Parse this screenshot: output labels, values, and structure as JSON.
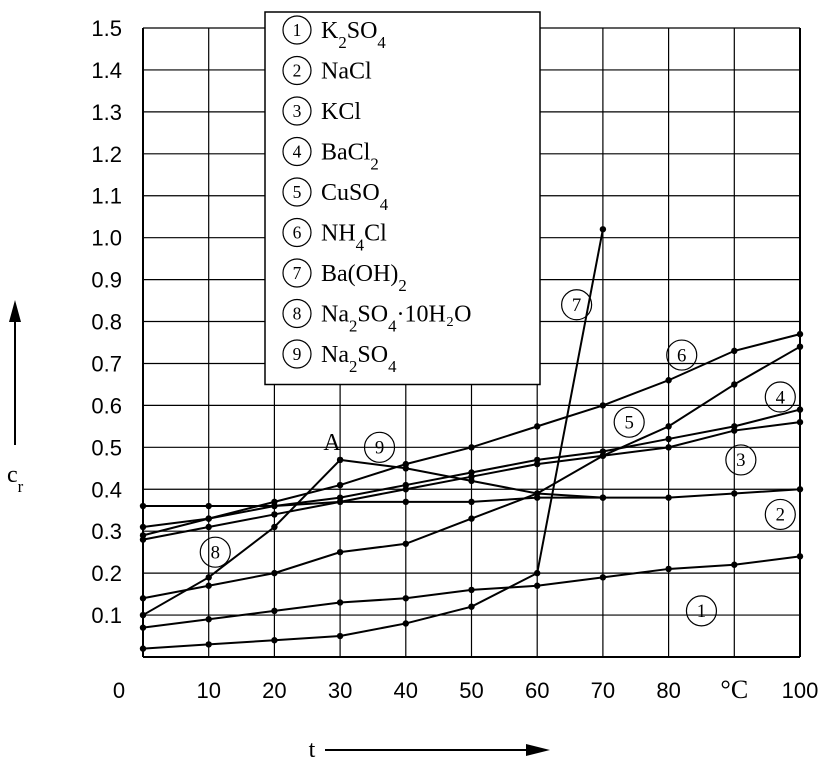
{
  "chart_data": {
    "type": "line",
    "xlabel": "t",
    "ylabel": "c",
    "ylabel_sub": "r",
    "x_unit": "°C",
    "xlim": [
      0,
      100
    ],
    "ylim": [
      0,
      1.5
    ],
    "x_ticks": [
      "0",
      "10",
      "20",
      "30",
      "40",
      "50",
      "60",
      "70",
      "80",
      "°C",
      "100"
    ],
    "y_ticks": [
      "0",
      "0.1",
      "0.2",
      "0.3",
      "0.4",
      "0.5",
      "0.6",
      "0.7",
      "0.8",
      "0.9",
      "1.0",
      "1.1",
      "1.2",
      "1.3",
      "1.4",
      "1.5"
    ],
    "grid": true,
    "legend_position": "top-center",
    "point_annotation": "A",
    "series": [
      {
        "marker": "1",
        "name": "K₂SO₄",
        "x": [
          0,
          10,
          20,
          30,
          40,
          50,
          60,
          70,
          80,
          90,
          100
        ],
        "y": [
          0.07,
          0.09,
          0.11,
          0.13,
          0.14,
          0.16,
          0.17,
          0.19,
          0.21,
          0.22,
          0.24
        ]
      },
      {
        "marker": "2",
        "name": "NaCl",
        "x": [
          0,
          10,
          20,
          30,
          40,
          50,
          60,
          70,
          80,
          90,
          100
        ],
        "y": [
          0.36,
          0.36,
          0.36,
          0.37,
          0.37,
          0.37,
          0.38,
          0.38,
          0.38,
          0.39,
          0.4
        ]
      },
      {
        "marker": "3",
        "name": "KCl",
        "x": [
          0,
          10,
          20,
          30,
          40,
          50,
          60,
          70,
          80,
          90,
          100
        ],
        "y": [
          0.28,
          0.31,
          0.34,
          0.37,
          0.4,
          0.43,
          0.46,
          0.48,
          0.5,
          0.54,
          0.56
        ]
      },
      {
        "marker": "4",
        "name": "BaCl₂",
        "x": [
          0,
          10,
          20,
          30,
          40,
          50,
          60,
          70,
          80,
          90,
          100
        ],
        "y": [
          0.31,
          0.33,
          0.36,
          0.38,
          0.41,
          0.44,
          0.47,
          0.49,
          0.52,
          0.55,
          0.59
        ]
      },
      {
        "marker": "5",
        "name": "CuSO₄",
        "x": [
          0,
          10,
          20,
          30,
          40,
          50,
          60,
          70,
          80,
          90,
          100
        ],
        "y": [
          0.14,
          0.17,
          0.2,
          0.25,
          0.27,
          0.33,
          0.39,
          0.48,
          0.55,
          0.65,
          0.74
        ]
      },
      {
        "marker": "6",
        "name": "NH₄Cl",
        "x": [
          0,
          10,
          20,
          30,
          40,
          50,
          60,
          70,
          80,
          90,
          100
        ],
        "y": [
          0.29,
          0.33,
          0.37,
          0.41,
          0.46,
          0.5,
          0.55,
          0.6,
          0.66,
          0.73,
          0.77
        ]
      },
      {
        "marker": "7",
        "name": "Ba(OH)₂",
        "x": [
          0,
          10,
          20,
          30,
          40,
          50,
          60,
          70
        ],
        "y": [
          0.02,
          0.03,
          0.04,
          0.05,
          0.08,
          0.12,
          0.2,
          1.02
        ]
      },
      {
        "marker": "8",
        "name": "Na₂SO₄·10H₂O",
        "x": [
          0,
          10,
          20,
          30
        ],
        "y": [
          0.1,
          0.19,
          0.31,
          0.47
        ]
      },
      {
        "marker": "9",
        "name": "Na₂SO₄",
        "x": [
          30,
          40,
          50,
          60,
          70
        ],
        "y": [
          0.47,
          0.45,
          0.42,
          0.39,
          0.38
        ]
      }
    ],
    "legend": [
      {
        "marker": "1",
        "text": "K",
        "sub1": "2",
        "mid": "SO",
        "sub2": "4",
        "tail": ""
      },
      {
        "marker": "2",
        "text": "NaCl",
        "sub1": "",
        "mid": "",
        "sub2": "",
        "tail": ""
      },
      {
        "marker": "3",
        "text": "KCl",
        "sub1": "",
        "mid": "",
        "sub2": "",
        "tail": ""
      },
      {
        "marker": "4",
        "text": "BaCl",
        "sub1": "2",
        "mid": "",
        "sub2": "",
        "tail": ""
      },
      {
        "marker": "5",
        "text": "CuSO",
        "sub1": "4",
        "mid": "",
        "sub2": "",
        "tail": ""
      },
      {
        "marker": "6",
        "text": "NH",
        "sub1": "4",
        "mid": "Cl",
        "sub2": "",
        "tail": ""
      },
      {
        "marker": "7",
        "text": "Ba(OH)",
        "sub1": "2",
        "mid": "",
        "sub2": "",
        "tail": ""
      },
      {
        "marker": "8",
        "text": "Na",
        "sub1": "2",
        "mid": "SO",
        "sub2": "4",
        "tail": "·10H₂O"
      },
      {
        "marker": "9",
        "text": "Na",
        "sub1": "2",
        "mid": "SO",
        "sub2": "4",
        "tail": ""
      }
    ]
  }
}
